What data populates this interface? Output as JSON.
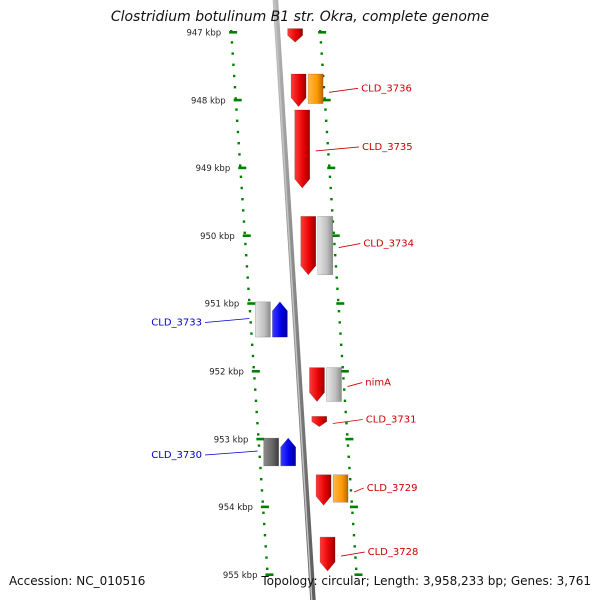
{
  "header": {
    "title": "Clostridium botulinum B1 str. Okra, complete genome"
  },
  "footer": {
    "accession": "Accession: NC_010516",
    "stats": "Topology: circular; Length: 3,958,233 bp; Genes: 3,761"
  },
  "scale": {
    "unit": "kbp",
    "ticks": [
      "947 kbp",
      "948 kbp",
      "949 kbp",
      "950 kbp",
      "951 kbp",
      "952 kbp",
      "953 kbp",
      "954 kbp",
      "955 kbp"
    ]
  },
  "colors": {
    "forward_cds": "#ff0000",
    "reverse_cds": "#0000ff",
    "orange_feature": "#ff9900",
    "gray_feature": "#bbbbbb",
    "dark_feature": "#666666",
    "ruler": "#008000",
    "backbone": "#888888"
  },
  "genes": [
    {
      "label": "",
      "strand": "forward",
      "kind": "cds",
      "start_kbp": 946.95,
      "end_kbp": 947.15
    },
    {
      "label": "CLD_3736",
      "strand": "forward",
      "kind": "cds",
      "start_kbp": 947.62,
      "end_kbp": 948.1,
      "pair": "orange"
    },
    {
      "label": "CLD_3735",
      "strand": "forward",
      "kind": "cds",
      "start_kbp": 948.15,
      "end_kbp": 949.3
    },
    {
      "label": "CLD_3734",
      "strand": "forward",
      "kind": "cds",
      "start_kbp": 949.72,
      "end_kbp": 950.58,
      "pair": "gray"
    },
    {
      "label": "CLD_3733",
      "strand": "reverse",
      "kind": "cds",
      "start_kbp": 950.98,
      "end_kbp": 951.5,
      "pair": "gray"
    },
    {
      "label": "nimA",
      "strand": "forward",
      "kind": "cds",
      "start_kbp": 951.95,
      "end_kbp": 952.45,
      "pair": "gray"
    },
    {
      "label": "CLD_3731",
      "strand": "forward",
      "kind": "cds",
      "start_kbp": 952.67,
      "end_kbp": 952.82
    },
    {
      "label": "CLD_3730",
      "strand": "reverse",
      "kind": "cds",
      "start_kbp": 952.99,
      "end_kbp": 953.4,
      "pair": "dark"
    },
    {
      "label": "CLD_3729",
      "strand": "forward",
      "kind": "cds",
      "start_kbp": 953.53,
      "end_kbp": 953.98,
      "pair": "orange"
    },
    {
      "label": "CLD_3728",
      "strand": "forward",
      "kind": "cds",
      "start_kbp": 954.45,
      "end_kbp": 954.95
    }
  ]
}
